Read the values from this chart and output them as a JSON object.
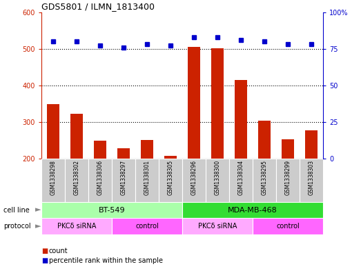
{
  "title": "GDS5801 / ILMN_1813400",
  "samples": [
    "GSM1338298",
    "GSM1338302",
    "GSM1338306",
    "GSM1338297",
    "GSM1338301",
    "GSM1338305",
    "GSM1338296",
    "GSM1338300",
    "GSM1338304",
    "GSM1338295",
    "GSM1338299",
    "GSM1338303"
  ],
  "counts": [
    348,
    323,
    248,
    228,
    250,
    208,
    505,
    502,
    415,
    303,
    253,
    278
  ],
  "percentile_ranks": [
    80,
    80,
    77,
    76,
    78,
    77,
    83,
    83,
    81,
    80,
    78,
    78
  ],
  "cell_lines": [
    {
      "label": "BT-549",
      "start": 0,
      "end": 6,
      "color": "#AAFFAA"
    },
    {
      "label": "MDA-MB-468",
      "start": 6,
      "end": 12,
      "color": "#33DD33"
    }
  ],
  "protocols": [
    {
      "label": "PKCδ siRNA",
      "start": 0,
      "end": 3,
      "color": "#FFAAFF"
    },
    {
      "label": "control",
      "start": 3,
      "end": 6,
      "color": "#FF66FF"
    },
    {
      "label": "PKCδ siRNA",
      "start": 6,
      "end": 9,
      "color": "#FFAAFF"
    },
    {
      "label": "control",
      "start": 9,
      "end": 12,
      "color": "#FF66FF"
    }
  ],
  "ylim_left": [
    200,
    600
  ],
  "yticks_left": [
    200,
    300,
    400,
    500,
    600
  ],
  "yticks_right": [
    0,
    25,
    50,
    75,
    100
  ],
  "bar_color": "#CC2200",
  "dot_color": "#0000CC",
  "background_color": "#ffffff",
  "sample_bg_color": "#CCCCCC"
}
